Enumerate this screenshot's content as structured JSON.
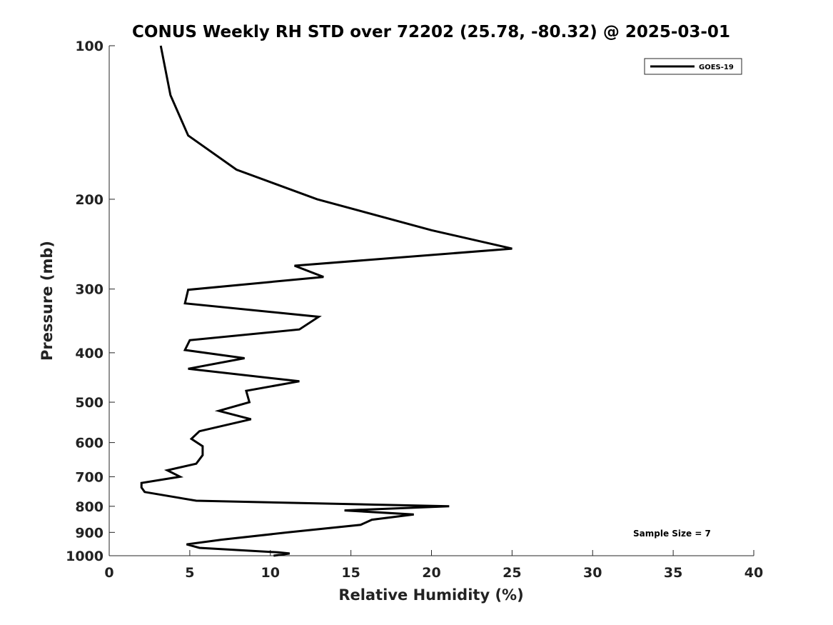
{
  "chart_data": {
    "type": "line",
    "title": "CONUS Weekly RH STD over 72202 (25.78, -80.32) @ 2025-03-01",
    "xlabel": "Relative Humidity (%)",
    "ylabel": "Pressure (mb)",
    "xlim": [
      0,
      40
    ],
    "ylim": [
      100,
      1000
    ],
    "y_scale": "log",
    "y_reversed": true,
    "x_ticks": [
      0,
      5,
      10,
      15,
      20,
      25,
      30,
      35,
      40
    ],
    "y_ticks": [
      100,
      200,
      300,
      400,
      500,
      600,
      700,
      800,
      900,
      1000
    ],
    "grid": false,
    "legend_position": "top-right",
    "annotation": "Sample Size = 7",
    "series": [
      {
        "name": "GOES-19",
        "color": "#000000",
        "points": [
          [
            3.2,
            100
          ],
          [
            3.8,
            125
          ],
          [
            4.9,
            150
          ],
          [
            7.9,
            175
          ],
          [
            12.9,
            200
          ],
          [
            20.0,
            230
          ],
          [
            25.0,
            250
          ],
          [
            11.5,
            270
          ],
          [
            13.3,
            284
          ],
          [
            4.9,
            301
          ],
          [
            4.7,
            320
          ],
          [
            13.0,
            340
          ],
          [
            11.8,
            360
          ],
          [
            5.0,
            378
          ],
          [
            4.7,
            395
          ],
          [
            8.4,
            410
          ],
          [
            4.9,
            430
          ],
          [
            11.8,
            455
          ],
          [
            8.5,
            475
          ],
          [
            8.7,
            500
          ],
          [
            6.8,
            520
          ],
          [
            8.8,
            540
          ],
          [
            5.6,
            570
          ],
          [
            5.1,
            590
          ],
          [
            5.8,
            610
          ],
          [
            5.8,
            635
          ],
          [
            5.4,
            660
          ],
          [
            3.6,
            680
          ],
          [
            4.4,
            700
          ],
          [
            2.0,
            720
          ],
          [
            2.0,
            735
          ],
          [
            2.2,
            750
          ],
          [
            5.4,
            780
          ],
          [
            21.1,
            800
          ],
          [
            14.6,
            815
          ],
          [
            18.9,
            830
          ],
          [
            16.3,
            850
          ],
          [
            15.6,
            870
          ],
          [
            11.1,
            900
          ],
          [
            7.0,
            930
          ],
          [
            4.8,
            950
          ],
          [
            5.6,
            965
          ],
          [
            10.5,
            985
          ],
          [
            11.2,
            990
          ],
          [
            10.2,
            1000
          ]
        ]
      }
    ]
  }
}
